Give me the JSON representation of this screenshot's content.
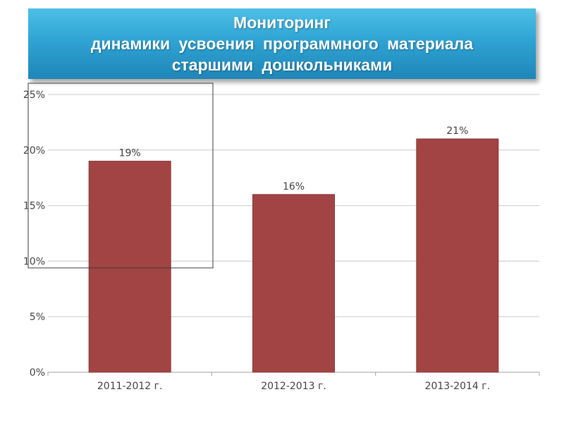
{
  "title": {
    "lines": [
      "Мониторинг",
      "динамики усвоения программного материала",
      "старшими дошкольниками"
    ]
  },
  "colors": {
    "bar": "#a14443",
    "bar_edge": "#8a3433",
    "grid": "#c8c8c8",
    "banner": "#2fa4d4"
  },
  "chart_data": {
    "type": "bar",
    "categories": [
      "2011-2012 г.",
      "2012-2013 г.",
      "2013-2014 г."
    ],
    "values": [
      0.19,
      0.16,
      0.21
    ],
    "data_labels": [
      "19%",
      "16%",
      "21%"
    ],
    "ylim": [
      0,
      0.25
    ],
    "yticks": [
      0,
      0.05,
      0.1,
      0.15,
      0.2,
      0.25
    ],
    "ytick_labels": [
      "0%",
      "5%",
      "10%",
      "15%",
      "20%",
      "25%"
    ],
    "grid": true,
    "legend": "none"
  }
}
